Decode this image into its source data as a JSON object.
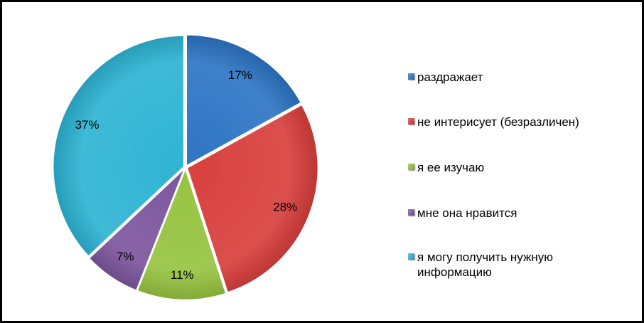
{
  "chart_data": {
    "type": "pie",
    "categories": [
      "раздражает",
      "не интерисует (безразличен)",
      "я ее изучаю",
      "мне она нравится",
      "я могу получить нужную информацию"
    ],
    "values": [
      17,
      28,
      11,
      7,
      37
    ],
    "data_labels": [
      "17%",
      "28%",
      "11%",
      "7%",
      "37%"
    ],
    "colors": [
      "#2E75C4",
      "#D8403D",
      "#97C341",
      "#7E579E",
      "#2EB4D3"
    ],
    "legend_position": "right",
    "title": ""
  }
}
